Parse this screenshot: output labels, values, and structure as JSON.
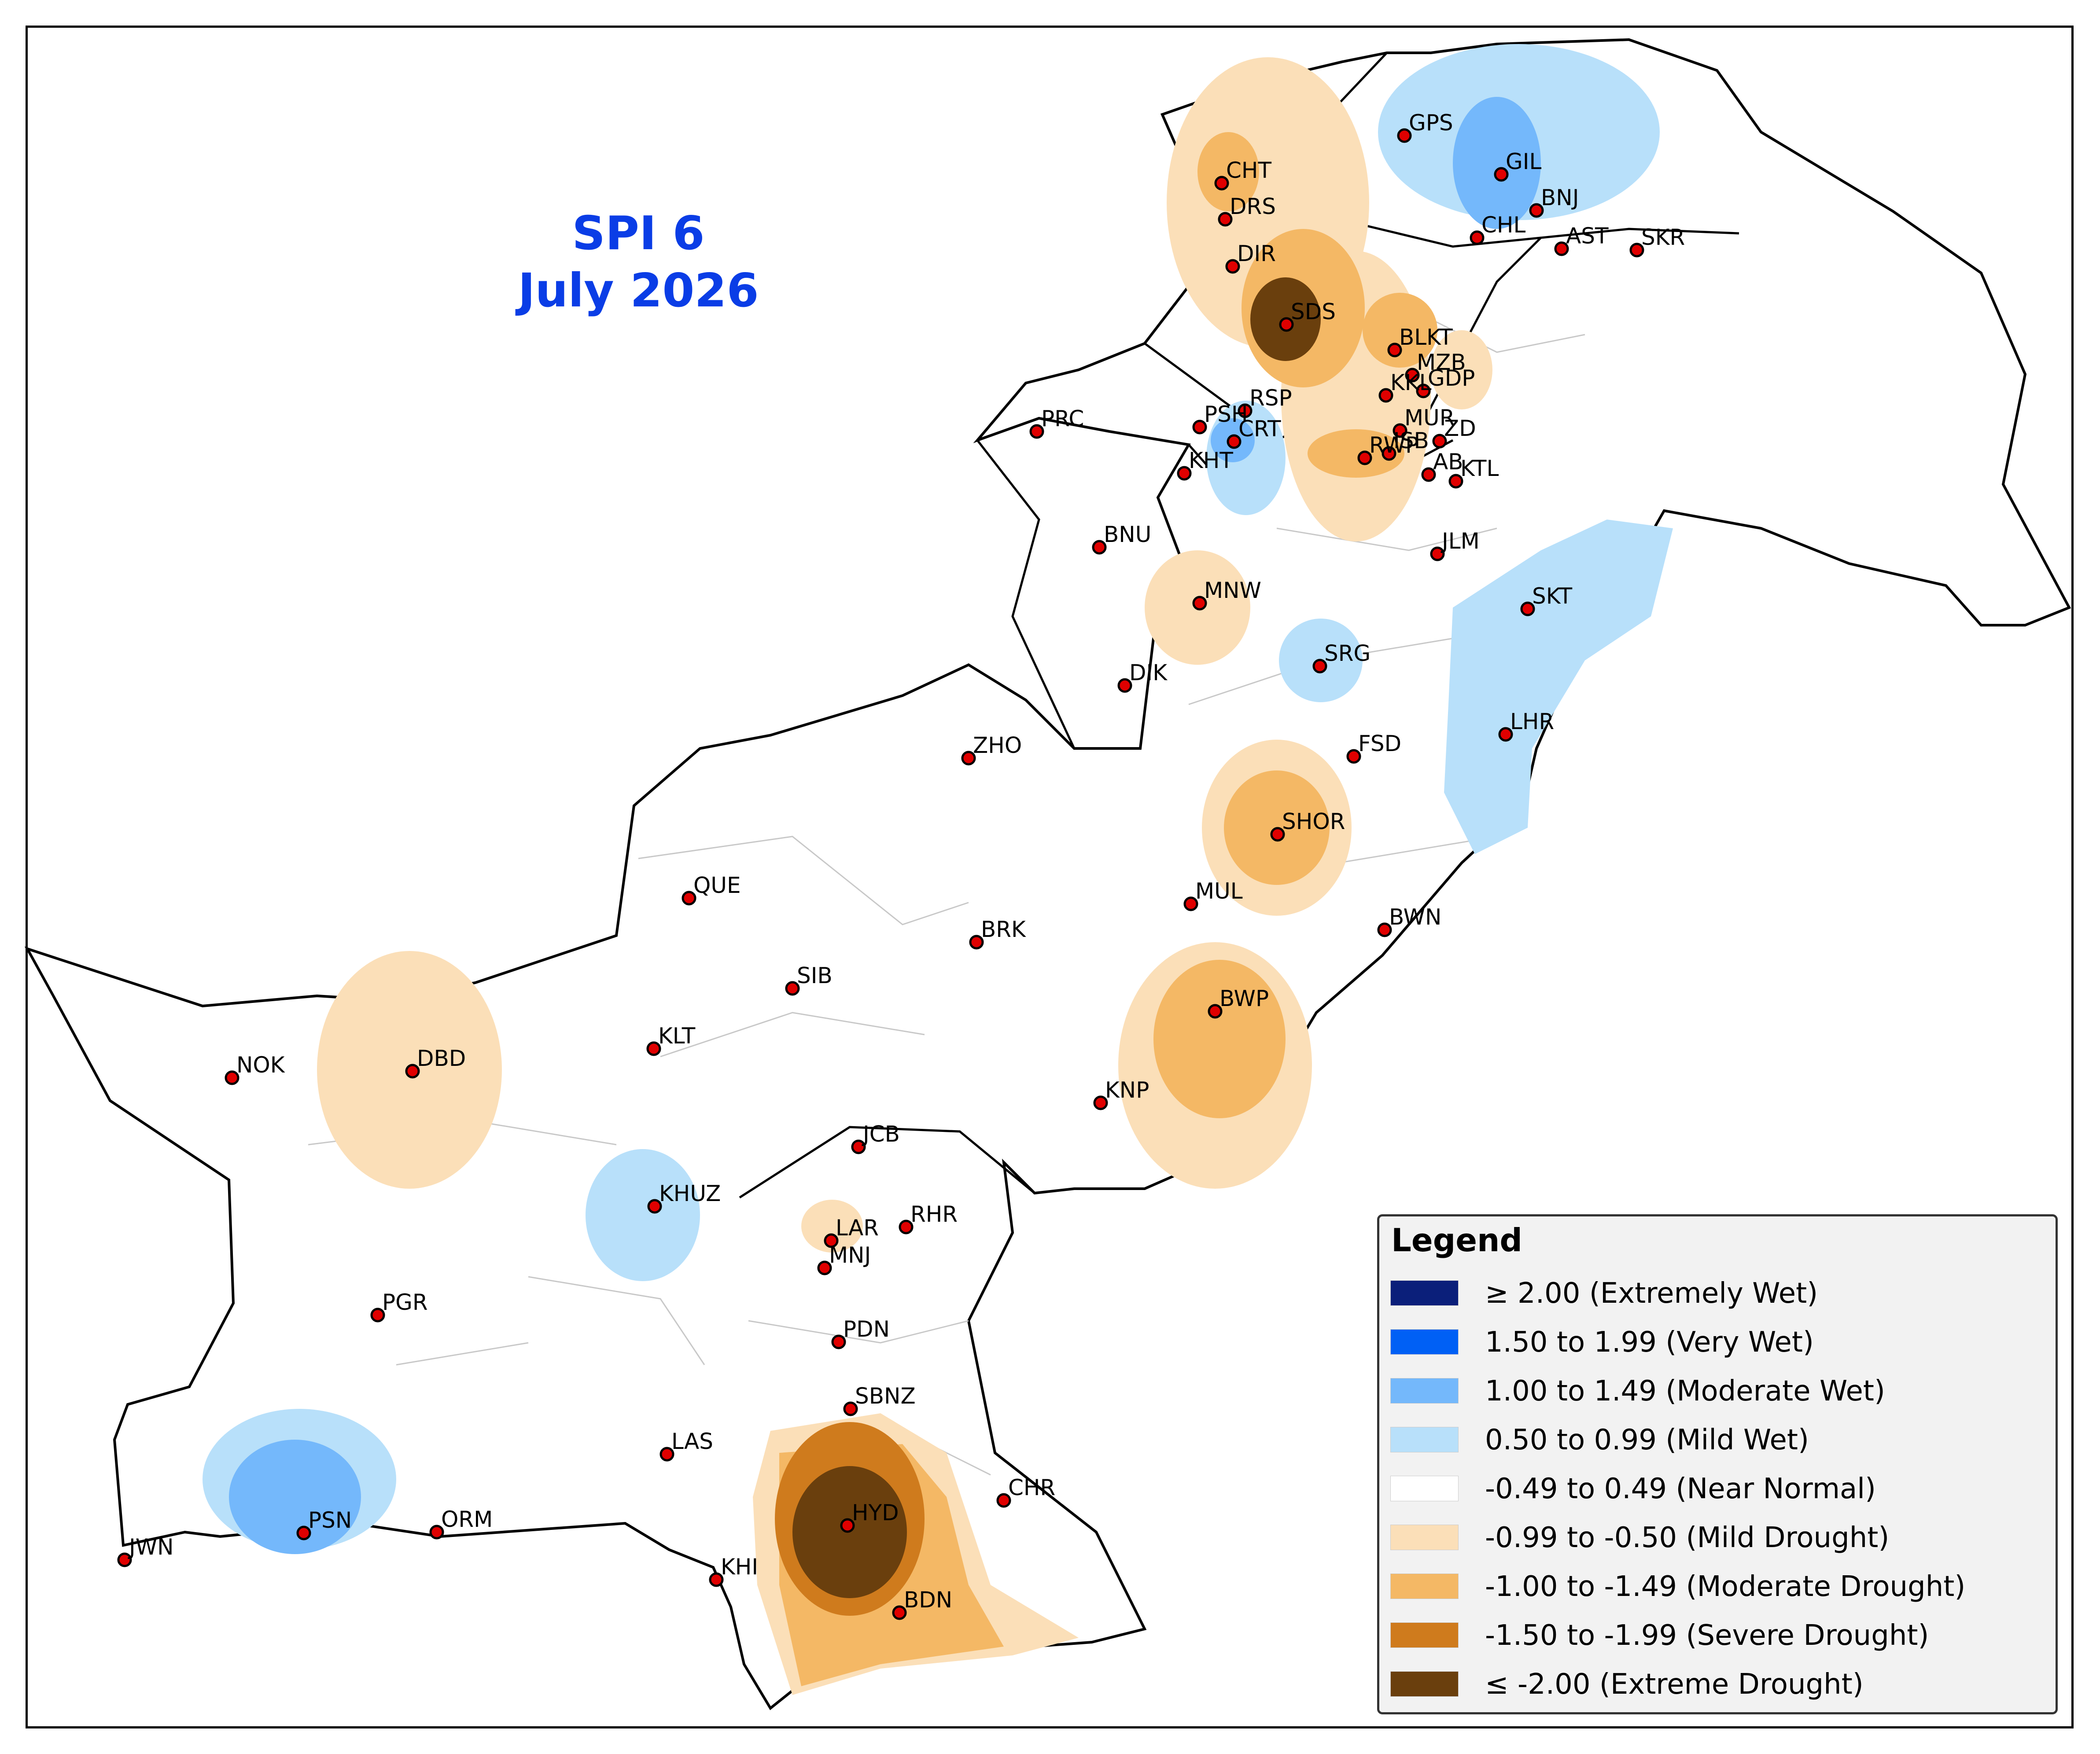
{
  "title": {
    "line1": "SPI 6",
    "line2": "July 2026"
  },
  "legend": {
    "title": "Legend",
    "items": [
      {
        "label": "≥ 2.00 (Extremely Wet)",
        "color": "#0b1f7a"
      },
      {
        "label": "1.50 to 1.99 (Very Wet)",
        "color": "#0060f5"
      },
      {
        "label": "1.00 to 1.49 (Moderate Wet)",
        "color": "#74b8fb"
      },
      {
        "label": "0.50 to 0.99 (Mild Wet)",
        "color": "#b8e0fa"
      },
      {
        "label": "-0.49 to 0.49 (Near Normal)",
        "color": "#ffffff"
      },
      {
        "label": "-0.99 to -0.50 (Mild Drought)",
        "color": "#fbdfb8"
      },
      {
        "label": "-1.00 to -1.49 (Moderate Drought)",
        "color": "#f4b865"
      },
      {
        "label": "-1.50 to -1.99 (Severe Drought)",
        "color": "#cf7b1d"
      },
      {
        "label": "≤ -2.00 (Extreme Drought)",
        "color": "#6a3f0d"
      }
    ]
  },
  "stations": [
    "GPS",
    "GIL",
    "BNJ",
    "CHL",
    "AST",
    "SKR",
    "CHT",
    "DRS",
    "DIR",
    "SDS",
    "BLKT",
    "MZB",
    "GDP",
    "KKL",
    "RSP",
    "PSH",
    "CRT",
    "MUR",
    "ISB",
    "ZD",
    "PRC",
    "KHT",
    "RWP",
    "AB",
    "KTL",
    "BNU",
    "JLM",
    "SKT",
    "MNW",
    "SRG",
    "DIK",
    "LHR",
    "FSD",
    "ZHO",
    "SHOR",
    "QUE",
    "MUL",
    "BWN",
    "BRK",
    "SIB",
    "BWP",
    "KLT",
    "NOK",
    "DBD",
    "KNP",
    "JCB",
    "KHUZ",
    "LAR",
    "RHR",
    "MNJ",
    "PGR",
    "PDN",
    "SBNZ",
    "LAS",
    "CHR",
    "JWN",
    "PSN",
    "ORM",
    "HYD",
    "KHI",
    "BDN"
  ]
}
